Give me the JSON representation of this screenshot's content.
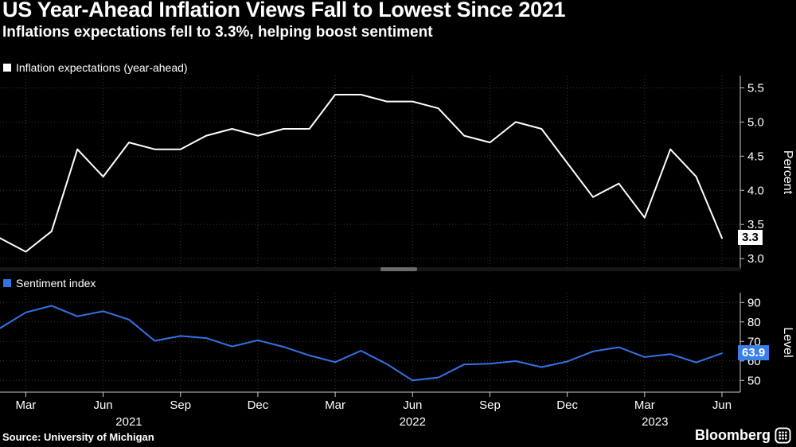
{
  "header": {
    "title": "US Year-Ahead Inflation Views Fall to Lowest Since 2021",
    "subtitle": "Inflations expectations fell to 3.3%, helping boost sentiment"
  },
  "footer": {
    "source": "Source: University of Michigan",
    "brand": "Bloomberg"
  },
  "colors": {
    "background": "#000000",
    "text": "#ffffff",
    "grid": "#3a3a3a",
    "axis": "#c8c8c8",
    "inflation_line": "#ffffff",
    "sentiment_line": "#3273e8",
    "inflation_label_bg": "#ffffff",
    "inflation_label_fg": "#000000",
    "sentiment_label_bg": "#3b7de9",
    "sentiment_label_fg": "#ffffff"
  },
  "x_axis": {
    "months": [
      "Feb 2021",
      "Mar 2021",
      "Apr 2021",
      "May 2021",
      "Jun 2021",
      "Jul 2021",
      "Aug 2021",
      "Sep 2021",
      "Oct 2021",
      "Nov 2021",
      "Dec 2021",
      "Jan 2022",
      "Feb 2022",
      "Mar 2022",
      "Apr 2022",
      "May 2022",
      "Jun 2022",
      "Jul 2022",
      "Aug 2022",
      "Sep 2022",
      "Oct 2022",
      "Nov 2022",
      "Dec 2022",
      "Jan 2023",
      "Feb 2023",
      "Mar 2023",
      "Apr 2023",
      "May 2023",
      "Jun 2023"
    ],
    "ticks": [
      {
        "i": 1,
        "label": "Mar"
      },
      {
        "i": 4,
        "label": "Jun"
      },
      {
        "i": 7,
        "label": "Sep"
      },
      {
        "i": 10,
        "label": "Dec"
      },
      {
        "i": 13,
        "label": "Mar"
      },
      {
        "i": 16,
        "label": "Jun"
      },
      {
        "i": 19,
        "label": "Sep"
      },
      {
        "i": 22,
        "label": "Dec"
      },
      {
        "i": 25,
        "label": "Mar"
      },
      {
        "i": 28,
        "label": "Jun"
      }
    ],
    "years": [
      {
        "label": "2021",
        "center_i": 5
      },
      {
        "label": "2022",
        "center_i": 16
      },
      {
        "label": "2023",
        "center_i": 25.4
      }
    ]
  },
  "chart_data": [
    {
      "type": "line",
      "name": "inflation-expectations",
      "legend": "Inflation expectations (year-ahead)",
      "ylabel": "Percent",
      "axis_side": "right",
      "legend_position": "top-left",
      "grid": true,
      "ylim": [
        2.85,
        5.68
      ],
      "yticks": [
        3.0,
        3.5,
        4.0,
        4.5,
        5.0,
        5.5
      ],
      "ytick_labels": [
        "3.0",
        "3.5",
        "4.0",
        "4.5",
        "5.0",
        "5.5"
      ],
      "x": [
        "Feb 2021",
        "Mar 2021",
        "Apr 2021",
        "May 2021",
        "Jun 2021",
        "Jul 2021",
        "Aug 2021",
        "Sep 2021",
        "Oct 2021",
        "Nov 2021",
        "Dec 2021",
        "Jan 2022",
        "Feb 2022",
        "Mar 2022",
        "Apr 2022",
        "May 2022",
        "Jun 2022",
        "Jul 2022",
        "Aug 2022",
        "Sep 2022",
        "Oct 2022",
        "Nov 2022",
        "Dec 2022",
        "Jan 2023",
        "Feb 2023",
        "Mar 2023",
        "Apr 2023",
        "May 2023",
        "Jun 2023"
      ],
      "values": [
        3.3,
        3.1,
        3.4,
        4.6,
        4.2,
        4.7,
        4.6,
        4.6,
        4.8,
        4.9,
        4.8,
        4.9,
        4.9,
        5.4,
        5.4,
        5.3,
        5.3,
        5.2,
        4.8,
        4.7,
        5.0,
        4.9,
        4.4,
        3.9,
        4.1,
        3.6,
        4.6,
        4.2,
        3.3
      ],
      "last_value_label": "3.3",
      "color": "#ffffff"
    },
    {
      "type": "line",
      "name": "sentiment-index",
      "legend": "Sentiment index",
      "ylabel": "Level",
      "axis_side": "right",
      "legend_position": "top-left",
      "grid": true,
      "ylim": [
        44,
        95
      ],
      "yticks": [
        50,
        60,
        70,
        80,
        90
      ],
      "ytick_labels": [
        "50",
        "60",
        "70",
        "80",
        "90"
      ],
      "x": [
        "Feb 2021",
        "Mar 2021",
        "Apr 2021",
        "May 2021",
        "Jun 2021",
        "Jul 2021",
        "Aug 2021",
        "Sep 2021",
        "Oct 2021",
        "Nov 2021",
        "Dec 2021",
        "Jan 2022",
        "Feb 2022",
        "Mar 2022",
        "Apr 2022",
        "May 2022",
        "Jun 2022",
        "Jul 2022",
        "Aug 2022",
        "Sep 2022",
        "Oct 2022",
        "Nov 2022",
        "Dec 2022",
        "Jan 2023",
        "Feb 2023",
        "Mar 2023",
        "Apr 2023",
        "May 2023",
        "Jun 2023"
      ],
      "values": [
        76.8,
        84.9,
        88.3,
        82.9,
        85.5,
        81.2,
        70.3,
        72.8,
        71.7,
        67.4,
        70.6,
        67.2,
        62.8,
        59.4,
        65.2,
        58.4,
        50.0,
        51.5,
        58.2,
        58.6,
        59.9,
        56.8,
        59.7,
        64.9,
        67.0,
        62.0,
        63.5,
        59.2,
        63.9
      ],
      "last_value_label": "63.9",
      "color": "#3273e8"
    }
  ]
}
